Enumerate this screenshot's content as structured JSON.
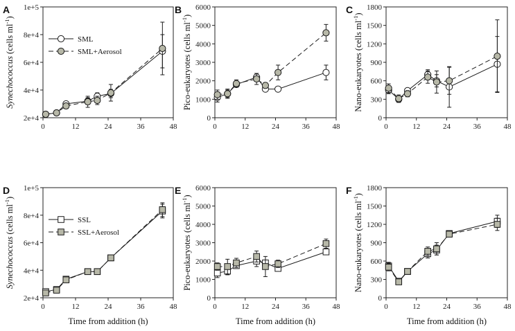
{
  "figure_xlabel": "Time from addition (h)",
  "colors": {
    "open": "#ffffff",
    "filled": "#b7b8a8",
    "line": "#1a1a1a",
    "axis": "#222222"
  },
  "chart_data": [
    {
      "panel": "A",
      "type": "line",
      "ylabel_italic": "Synechococcus",
      "ylabel_units": " (cells ml",
      "ylabel_sup": "-1",
      "ylabel_close": ")",
      "xlim": [
        0,
        48
      ],
      "xticks": [
        0,
        12,
        24,
        36,
        48
      ],
      "xtick_labels": [
        "0",
        "12",
        "24",
        "36",
        "48"
      ],
      "ylim": [
        20000,
        100000
      ],
      "yticks": [
        20000,
        40000,
        60000,
        80000,
        100000
      ],
      "ytick_labels": [
        "2e+4",
        "4e+4",
        "6e+4",
        "8e+4",
        "1e+5"
      ],
      "xlabel": "",
      "legend": {
        "labels": [
          "SML",
          "SML+Aerosol"
        ],
        "position": "upper-left"
      },
      "series": [
        {
          "name": "SML",
          "marker": "circle",
          "fill": "open",
          "dash": "solid",
          "x": [
            1,
            5,
            8.5,
            16.5,
            20,
            25,
            44
          ],
          "y": [
            22500,
            23500,
            30000,
            32000,
            35500,
            37500,
            68000
          ],
          "err": [
            1000,
            1000,
            1500,
            2500,
            2500,
            3000,
            12000
          ]
        },
        {
          "name": "SML+Aerosol",
          "marker": "circle",
          "fill": "filled",
          "dash": "dashed",
          "x": [
            1,
            5,
            8.5,
            16.5,
            20,
            25,
            44
          ],
          "y": [
            22500,
            23500,
            28500,
            31500,
            32500,
            38000,
            70000
          ],
          "err": [
            1000,
            1000,
            2000,
            4000,
            3000,
            6000,
            19000
          ]
        }
      ]
    },
    {
      "panel": "B",
      "type": "line",
      "ylabel_italic": "",
      "ylabel_units": "Pico-eukaryotes (cells ml",
      "ylabel_sup": "-1",
      "ylabel_close": ")",
      "xlim": [
        0,
        48
      ],
      "xticks": [
        0,
        12,
        24,
        36,
        48
      ],
      "xtick_labels": [
        "0",
        "12",
        "24",
        "36",
        "48"
      ],
      "ylim": [
        0,
        6000
      ],
      "yticks": [
        0,
        1000,
        2000,
        3000,
        4000,
        5000,
        6000
      ],
      "ytick_labels": [
        "0",
        "1000",
        "2000",
        "3000",
        "4000",
        "5000",
        "6000"
      ],
      "xlabel": "",
      "series": [
        {
          "name": "SML",
          "marker": "circle",
          "fill": "open",
          "dash": "solid",
          "x": [
            1,
            5,
            8.5,
            16.5,
            20,
            25,
            44
          ],
          "y": [
            1100,
            1300,
            1800,
            2200,
            1550,
            1550,
            2450
          ],
          "err": [
            250,
            200,
            150,
            200,
            120,
            100,
            400
          ]
        },
        {
          "name": "SML+Aerosol",
          "marker": "circle",
          "fill": "filled",
          "dash": "dashed",
          "x": [
            1,
            5,
            8.5,
            16.5,
            20,
            25,
            44
          ],
          "y": [
            1250,
            1300,
            1850,
            2100,
            1750,
            2450,
            4600
          ],
          "err": [
            250,
            250,
            200,
            300,
            150,
            400,
            450
          ]
        }
      ]
    },
    {
      "panel": "C",
      "type": "line",
      "ylabel_italic": "",
      "ylabel_units": "Nano-eukaryotes (cells ml",
      "ylabel_sup": "-1",
      "ylabel_close": ")",
      "xlim": [
        0,
        48
      ],
      "xticks": [
        0,
        12,
        24,
        36,
        48
      ],
      "xtick_labels": [
        "0",
        "12",
        "24",
        "36",
        "48"
      ],
      "ylim": [
        0,
        1800
      ],
      "yticks": [
        0,
        300,
        600,
        900,
        1200,
        1500,
        1800
      ],
      "ytick_labels": [
        "0",
        "300",
        "600",
        "900",
        "1200",
        "1500",
        "1800"
      ],
      "xlabel": "",
      "series": [
        {
          "name": "SML",
          "marker": "circle",
          "fill": "open",
          "dash": "solid",
          "x": [
            1,
            5,
            8.5,
            16.5,
            20,
            25,
            44
          ],
          "y": [
            450,
            300,
            440,
            700,
            600,
            500,
            870
          ],
          "err": [
            60,
            50,
            40,
            80,
            100,
            330,
            450
          ]
        },
        {
          "name": "SML+Aerosol",
          "marker": "circle",
          "fill": "filled",
          "dash": "dashed",
          "x": [
            1,
            5,
            8.5,
            16.5,
            20,
            25,
            44
          ],
          "y": [
            480,
            310,
            390,
            660,
            580,
            600,
            1000
          ],
          "err": [
            70,
            60,
            50,
            100,
            180,
            220,
            590
          ]
        }
      ]
    },
    {
      "panel": "D",
      "type": "line",
      "ylabel_italic": "Synechococcus",
      "ylabel_units": " (cells ml",
      "ylabel_sup": "-1",
      "ylabel_close": ")",
      "xlim": [
        0,
        48
      ],
      "xticks": [
        0,
        12,
        24,
        36,
        48
      ],
      "xtick_labels": [
        "0",
        "12",
        "24",
        "36",
        "48"
      ],
      "ylim": [
        20000,
        100000
      ],
      "yticks": [
        20000,
        40000,
        60000,
        80000,
        100000
      ],
      "ytick_labels": [
        "2e+4",
        "4e+4",
        "6e+4",
        "8e+4",
        "1e+5"
      ],
      "xlabel": "Time from addition (h)",
      "legend": {
        "labels": [
          "SSL",
          "SSL+Aerosol"
        ],
        "position": "upper-left"
      },
      "series": [
        {
          "name": "SSL",
          "marker": "square",
          "fill": "open",
          "dash": "solid",
          "x": [
            1,
            5,
            8.5,
            16.5,
            20,
            25,
            44
          ],
          "y": [
            24500,
            26000,
            33500,
            39000,
            39000,
            49000,
            83000
          ],
          "err": [
            1500,
            1000,
            1000,
            1000,
            1000,
            1000,
            5000
          ]
        },
        {
          "name": "SSL+Aerosol",
          "marker": "square",
          "fill": "filled",
          "dash": "dashed",
          "x": [
            1,
            5,
            8.5,
            16.5,
            20,
            25,
            44
          ],
          "y": [
            23500,
            25500,
            33000,
            39000,
            39000,
            49000,
            84000
          ],
          "err": [
            1500,
            1000,
            1000,
            1000,
            1000,
            1000,
            5000
          ]
        }
      ]
    },
    {
      "panel": "E",
      "type": "line",
      "ylabel_italic": "",
      "ylabel_units": "Pico-eukaryotes (cells ml",
      "ylabel_sup": "-1",
      "ylabel_close": ")",
      "xlim": [
        0,
        48
      ],
      "xticks": [
        0,
        12,
        24,
        36,
        48
      ],
      "xtick_labels": [
        "0",
        "12",
        "24",
        "36",
        "48"
      ],
      "ylim": [
        0,
        6000
      ],
      "yticks": [
        0,
        1000,
        2000,
        3000,
        4000,
        5000,
        6000
      ],
      "ytick_labels": [
        "0",
        "1000",
        "2000",
        "3000",
        "4000",
        "5000",
        "6000"
      ],
      "xlabel": "Time from addition (h)",
      "series": [
        {
          "name": "SSL",
          "marker": "square",
          "fill": "open",
          "dash": "solid",
          "x": [
            1,
            5,
            8.5,
            16.5,
            20,
            25,
            44
          ],
          "y": [
            1350,
            1450,
            1750,
            2000,
            1900,
            1600,
            2500
          ],
          "err": [
            250,
            200,
            150,
            300,
            150,
            100,
            150
          ]
        },
        {
          "name": "SSL+Aerosol",
          "marker": "square",
          "fill": "filled",
          "dash": "dashed",
          "x": [
            1,
            5,
            8.5,
            16.5,
            20,
            25,
            44
          ],
          "y": [
            1700,
            1700,
            1900,
            2250,
            1700,
            1850,
            2950
          ],
          "err": [
            200,
            400,
            250,
            300,
            550,
            200,
            250
          ]
        }
      ]
    },
    {
      "panel": "F",
      "type": "line",
      "ylabel_italic": "",
      "ylabel_units": "Nano-eukaryotes (cells ml",
      "ylabel_sup": "-1",
      "ylabel_close": ")",
      "xlim": [
        0,
        48
      ],
      "xticks": [
        0,
        12,
        24,
        36,
        48
      ],
      "xtick_labels": [
        "0",
        "12",
        "24",
        "36",
        "48"
      ],
      "ylim": [
        0,
        1800
      ],
      "yticks": [
        0,
        300,
        600,
        900,
        1200,
        1500,
        1800
      ],
      "ytick_labels": [
        "0",
        "300",
        "600",
        "900",
        "1200",
        "1500",
        "1800"
      ],
      "xlabel": "Time from addition (h)",
      "series": [
        {
          "name": "SSL",
          "marker": "square",
          "fill": "open",
          "dash": "solid",
          "x": [
            1,
            5,
            8.5,
            16.5,
            20,
            25,
            44
          ],
          "y": [
            520,
            270,
            430,
            720,
            780,
            1050,
            1250
          ],
          "err": [
            60,
            40,
            30,
            70,
            80,
            30,
            100
          ]
        },
        {
          "name": "SSL+Aerosol",
          "marker": "square",
          "fill": "filled",
          "dash": "dashed",
          "x": [
            1,
            5,
            8.5,
            16.5,
            20,
            25,
            44
          ],
          "y": [
            500,
            260,
            430,
            760,
            800,
            1040,
            1200
          ],
          "err": [
            60,
            40,
            30,
            70,
            100,
            30,
            100
          ]
        }
      ]
    }
  ]
}
